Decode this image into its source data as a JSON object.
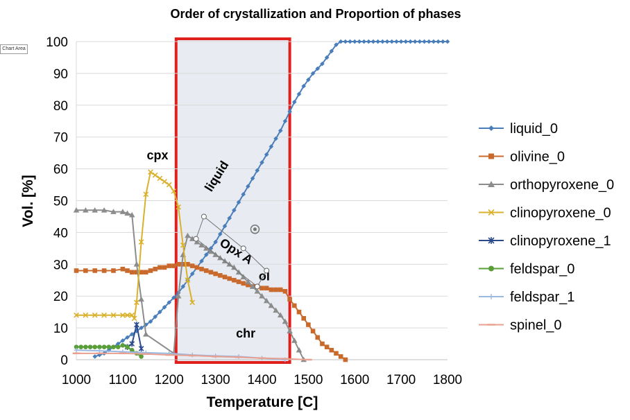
{
  "chart_area_tag": "Chart Area",
  "chart_data": {
    "type": "line",
    "title": "Order of crystallization and Proportion of phases",
    "xlabel": "Temperature [C]",
    "ylabel": "Vol. [%]",
    "xlim": [
      1000,
      1800
    ],
    "ylim": [
      0,
      100
    ],
    "xticks": [
      "1000",
      "1100",
      "1200",
      "1300",
      "1400",
      "1500",
      "1600",
      "1700",
      "1800"
    ],
    "yticks": [
      "0",
      "10",
      "20",
      "30",
      "40",
      "50",
      "60",
      "70",
      "80",
      "90",
      "100"
    ],
    "grid": "horizontal",
    "legend_position": "right",
    "highlight_region": {
      "x_range": [
        1215,
        1460
      ],
      "y_range": [
        0,
        100
      ],
      "fill": "#e8ebf2",
      "border": "#e0201c"
    },
    "annotations": [
      {
        "text": "cpx",
        "x": 1175,
        "y": 63
      },
      {
        "text": "liquid",
        "x": 1310,
        "y": 57,
        "rotate": -58
      },
      {
        "text": "Opx A",
        "x": 1340,
        "y": 33,
        "rotate": 33
      },
      {
        "text": "ol",
        "x": 1405,
        "y": 25
      },
      {
        "text": "chr",
        "x": 1365,
        "y": 7
      }
    ],
    "selection_box": {
      "points": [
        [
          1275,
          45
        ],
        [
          1360,
          35
        ],
        [
          1410,
          28
        ],
        [
          1390,
          23
        ],
        [
          1258,
          38
        ]
      ]
    },
    "series": [
      {
        "name": "liquid_0",
        "color": "#4a7ebb",
        "marker": "diamond",
        "x": [
          1040,
          1050,
          1060,
          1070,
          1080,
          1090,
          1100,
          1110,
          1120,
          1130,
          1140,
          1150,
          1160,
          1170,
          1180,
          1190,
          1200,
          1210,
          1220,
          1230,
          1240,
          1250,
          1260,
          1270,
          1280,
          1290,
          1300,
          1310,
          1320,
          1330,
          1340,
          1350,
          1360,
          1370,
          1380,
          1390,
          1400,
          1410,
          1420,
          1430,
          1440,
          1450,
          1460,
          1470,
          1480,
          1490,
          1500,
          1510,
          1520,
          1530,
          1540,
          1550,
          1560,
          1570,
          1580,
          1590,
          1600,
          1610,
          1620,
          1630,
          1640,
          1650,
          1660,
          1670,
          1680,
          1690,
          1700,
          1710,
          1720,
          1730,
          1740,
          1750,
          1760,
          1770,
          1780,
          1790,
          1800
        ],
        "y": [
          1,
          1.5,
          2,
          3,
          4,
          5,
          6,
          7,
          8,
          9,
          10,
          11,
          12,
          13.5,
          15,
          16.5,
          18,
          19.5,
          21,
          23,
          25,
          27,
          29,
          31,
          33,
          35,
          37,
          39.5,
          42,
          44.5,
          47,
          49.5,
          52,
          54.5,
          57,
          59.5,
          62,
          64.5,
          67,
          69.5,
          72,
          75,
          78,
          81,
          83.5,
          86,
          88,
          90,
          91.5,
          93,
          95,
          97,
          99,
          100,
          100,
          100,
          100,
          100,
          100,
          100,
          100,
          100,
          100,
          100,
          100,
          100,
          100,
          100,
          100,
          100,
          100,
          100,
          100,
          100,
          100,
          100,
          100
        ]
      },
      {
        "name": "olivine_0",
        "color": "#c96a2c",
        "marker": "square",
        "x": [
          1000,
          1020,
          1040,
          1060,
          1080,
          1100,
          1110,
          1120,
          1130,
          1140,
          1150,
          1160,
          1170,
          1180,
          1190,
          1200,
          1210,
          1220,
          1230,
          1240,
          1250,
          1260,
          1270,
          1280,
          1290,
          1300,
          1310,
          1320,
          1330,
          1340,
          1350,
          1360,
          1370,
          1380,
          1390,
          1400,
          1410,
          1420,
          1430,
          1440,
          1450,
          1460,
          1470,
          1480,
          1490,
          1500,
          1510,
          1520,
          1530,
          1540,
          1550,
          1560,
          1570,
          1580
        ],
        "y": [
          28,
          28,
          28,
          28,
          28,
          28.5,
          28,
          27.5,
          27.5,
          27.5,
          27.5,
          28,
          28.5,
          29,
          29,
          29.5,
          29.5,
          30,
          30,
          30,
          29.5,
          29,
          28.5,
          28,
          27.5,
          27,
          26.5,
          26,
          25.5,
          25,
          24.5,
          24,
          23.5,
          23,
          23,
          22.5,
          22.5,
          22,
          22,
          22,
          21.5,
          19,
          17,
          15,
          13,
          11,
          9,
          7,
          5,
          4,
          3,
          2,
          1,
          0
        ]
      },
      {
        "name": "orthopyroxene_0",
        "color": "#8c8c8c",
        "marker": "triangle",
        "x": [
          1000,
          1020,
          1040,
          1060,
          1080,
          1100,
          1110,
          1120,
          1130,
          1140,
          1150,
          1210,
          1220,
          1230,
          1240,
          1250,
          1260,
          1270,
          1280,
          1290,
          1300,
          1310,
          1320,
          1330,
          1340,
          1350,
          1360,
          1370,
          1380,
          1390,
          1400,
          1410,
          1420,
          1430,
          1440,
          1450,
          1460,
          1470,
          1480,
          1490
        ],
        "y": [
          47,
          47,
          47,
          47,
          46.5,
          46.5,
          46,
          45.5,
          30,
          19,
          8,
          2,
          20,
          33,
          39,
          38,
          37,
          36,
          35,
          34,
          33,
          32,
          31,
          30,
          29,
          27.5,
          26,
          24.5,
          23,
          21.5,
          20,
          18.5,
          17,
          15.5,
          14,
          12,
          9,
          6,
          3,
          0
        ]
      },
      {
        "name": "clinopyroxene_0",
        "color": "#d9b12c",
        "marker": "x",
        "x": [
          1000,
          1020,
          1040,
          1060,
          1080,
          1100,
          1110,
          1120,
          1125,
          1130,
          1140,
          1150,
          1160,
          1170,
          1180,
          1190,
          1200,
          1210,
          1220,
          1230,
          1240,
          1250
        ],
        "y": [
          14,
          14,
          14,
          14,
          14,
          14,
          14,
          14,
          13,
          18,
          37,
          52,
          59,
          58,
          57,
          56,
          55,
          53,
          48,
          36,
          25,
          18
        ]
      },
      {
        "name": "clinopyroxene_1",
        "color": "#2a4a8c",
        "marker": "star",
        "x": [
          1110,
          1120,
          1130,
          1140
        ],
        "y": [
          4,
          5,
          11,
          3.5
        ]
      },
      {
        "name": "feldspar_0",
        "color": "#5a9e3a",
        "marker": "circle",
        "x": [
          1000,
          1010,
          1020,
          1030,
          1040,
          1050,
          1060,
          1070,
          1080,
          1090,
          1100,
          1110,
          1120,
          1130,
          1140
        ],
        "y": [
          4,
          4,
          4,
          4,
          4,
          4,
          4,
          4,
          4,
          4,
          4.5,
          4,
          3,
          2,
          1
        ]
      },
      {
        "name": "feldspar_1",
        "color": "#9cb9e0",
        "marker": "plus",
        "x": [
          1000,
          1050,
          1100,
          1150,
          1200,
          1250,
          1300,
          1350,
          1400,
          1450
        ],
        "y": [
          3,
          2.8,
          2.5,
          2.2,
          2,
          1.5,
          1.2,
          1,
          0.5,
          0
        ]
      },
      {
        "name": "spinel_0",
        "color": "#e8a090",
        "marker": "dash",
        "x": [
          1000,
          1050,
          1100,
          1150,
          1200,
          1250,
          1300,
          1350,
          1400,
          1450,
          1500
        ],
        "y": [
          2,
          2,
          2,
          1.8,
          1.5,
          1.3,
          1,
          0.8,
          0.5,
          0.3,
          0
        ]
      }
    ]
  }
}
